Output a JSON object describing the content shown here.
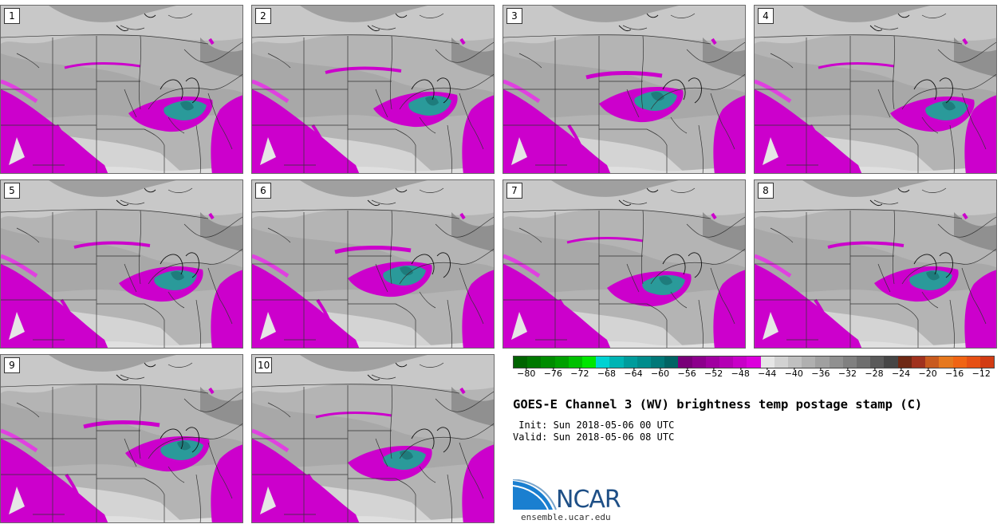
{
  "panels": [
    {
      "label": "1",
      "storm_shift": 0
    },
    {
      "label": "2",
      "storm_shift": -8
    },
    {
      "label": "3",
      "storm_shift": -40
    },
    {
      "label": "4",
      "storm_shift": 10
    },
    {
      "label": "5",
      "storm_shift": -12
    },
    {
      "label": "6",
      "storm_shift": -40
    },
    {
      "label": "7",
      "storm_shift": -30
    },
    {
      "label": "8",
      "storm_shift": -10
    },
    {
      "label": "9",
      "storm_shift": -4
    },
    {
      "label": "10",
      "storm_shift": -40
    }
  ],
  "colorbar": {
    "colors": [
      "#006400",
      "#007800",
      "#008c00",
      "#00a000",
      "#00c000",
      "#00e600",
      "#00d2d2",
      "#00b4b4",
      "#009c9c",
      "#008c8c",
      "#007878",
      "#006464",
      "#780078",
      "#8c008c",
      "#a000a0",
      "#b400b4",
      "#c800c8",
      "#dc00dc",
      "#e6e6e6",
      "#d2d2d2",
      "#c0c0c0",
      "#b0b0b0",
      "#a0a0a0",
      "#909090",
      "#808080",
      "#6e6e6e",
      "#5a5a5a",
      "#464646",
      "#6e2814",
      "#a0321e",
      "#c85a1e",
      "#e6781e",
      "#f06414",
      "#e65014",
      "#d23c14"
    ],
    "ticks": [
      "−80",
      "−76",
      "−72",
      "−68",
      "−64",
      "−60",
      "−56",
      "−52",
      "−48",
      "−44",
      "−40",
      "−36",
      "−32",
      "−28",
      "−24",
      "−20",
      "−16",
      "−12"
    ],
    "min": -82,
    "max": -10,
    "tick_values": [
      -80,
      -76,
      -72,
      -68,
      -64,
      -60,
      -56,
      -52,
      -48,
      -44,
      -40,
      -36,
      -32,
      -28,
      -24,
      -20,
      -16,
      -12
    ]
  },
  "title": "GOES-E Channel 3 (WV) brightness temp postage stamp (C)",
  "init": " Init: Sun 2018-05-06 00 UTC",
  "valid": "Valid: Sun 2018-05-06 08 UTC",
  "logo": {
    "text": "NCAR",
    "url": "ensemble.ucar.edu"
  }
}
